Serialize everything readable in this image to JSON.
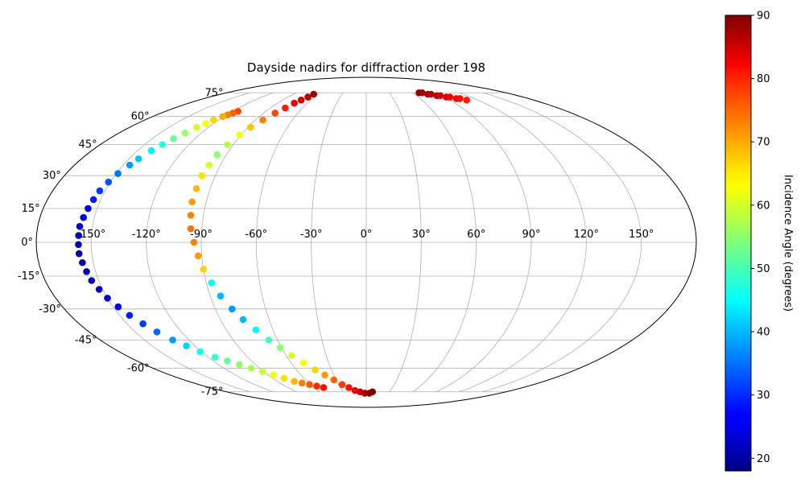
{
  "chart_data": {
    "type": "scatter",
    "projection": "mollweide",
    "title": "Dayside nadirs for diffraction order 198",
    "xlabel": "",
    "ylabel": "",
    "grid": true,
    "lon_ticks": [
      {
        "value": -150,
        "label": "-150°"
      },
      {
        "value": -120,
        "label": "-120°"
      },
      {
        "value": -90,
        "label": "-90°"
      },
      {
        "value": -60,
        "label": "-60°"
      },
      {
        "value": -30,
        "label": "-30°"
      },
      {
        "value": 0,
        "label": "0°"
      },
      {
        "value": 30,
        "label": "30°"
      },
      {
        "value": 60,
        "label": "60°"
      },
      {
        "value": 90,
        "label": "90°"
      },
      {
        "value": 120,
        "label": "120°"
      },
      {
        "value": 150,
        "label": "150°"
      }
    ],
    "lat_ticks": [
      {
        "value": 75,
        "label": "75°"
      },
      {
        "value": 60,
        "label": "60°"
      },
      {
        "value": 45,
        "label": "45°"
      },
      {
        "value": 30,
        "label": "30°"
      },
      {
        "value": 15,
        "label": "15°"
      },
      {
        "value": 0,
        "label": "0°"
      },
      {
        "value": -15,
        "label": "-15°"
      },
      {
        "value": -30,
        "label": "-30°"
      },
      {
        "value": -45,
        "label": "-45°"
      },
      {
        "value": -60,
        "label": "-60°"
      },
      {
        "value": -75,
        "label": "-75°"
      }
    ],
    "colorbar": {
      "label": "Incidence Angle (degrees)",
      "colormap": "jet",
      "range": [
        18,
        90
      ],
      "ticks": [
        {
          "value": 20,
          "label": "20"
        },
        {
          "value": 30,
          "label": "30"
        },
        {
          "value": 40,
          "label": "40"
        },
        {
          "value": 50,
          "label": "50"
        },
        {
          "value": 60,
          "label": "60"
        },
        {
          "value": 70,
          "label": "70"
        },
        {
          "value": 80,
          "label": "80"
        },
        {
          "value": 90,
          "label": "90"
        }
      ]
    },
    "series": [
      {
        "lon": [
          -115,
          -117,
          -119,
          -121,
          -124,
          -126,
          -129,
          -132,
          -135,
          -138,
          -141,
          -144,
          -146,
          -149,
          -151,
          -153,
          -154,
          -155,
          -156,
          -157,
          -157,
          -157,
          -157,
          -156,
          -155,
          -154,
          -152,
          -150,
          -147,
          -144,
          -140,
          -136,
          -131,
          -126,
          -121,
          -115,
          -109,
          -103,
          -97,
          -91,
          -85,
          -79,
          -73,
          -67,
          -61,
          -55,
          -49
        ],
        "lat": [
          63,
          62,
          61,
          60,
          58,
          56,
          54,
          51,
          48,
          45,
          42,
          38,
          35,
          31,
          27,
          23,
          19,
          15,
          11,
          7,
          3,
          -1,
          -5,
          -9,
          -13,
          -17,
          -21,
          -25,
          -29,
          -33,
          -37,
          -41,
          -45,
          -48,
          -51,
          -54,
          -56,
          -58,
          -60,
          -62,
          -64,
          -66,
          -68,
          -69,
          -70,
          -71,
          -72
        ],
        "value": [
          76,
          74,
          72,
          69,
          66,
          63,
          60,
          56,
          52,
          48,
          44,
          41,
          38,
          35,
          33,
          31,
          29,
          27,
          25,
          23,
          22,
          21,
          20,
          20,
          21,
          22,
          23,
          25,
          27,
          29,
          31,
          34,
          38,
          42,
          46,
          49,
          52,
          55,
          57,
          59,
          62,
          65,
          68,
          72,
          75,
          78,
          80
        ]
      },
      {
        "lon": [
          -65,
          -67,
          -70,
          -73,
          -76,
          -80,
          -84,
          -88,
          -91,
          -94,
          -96,
          -97,
          -98,
          -98,
          -98,
          -97,
          -96,
          -94,
          -92,
          -90,
          -87,
          -84,
          -80,
          -76,
          -71,
          -66,
          -61,
          -56,
          -50,
          -44,
          -38,
          -32,
          -26,
          -20,
          -14,
          -8,
          -2,
          4,
          8
        ],
        "lat": [
          74,
          72,
          70,
          68,
          65,
          62,
          58,
          54,
          50,
          45,
          40,
          35,
          30,
          24,
          18,
          12,
          6,
          0,
          -6,
          -12,
          -18,
          -24,
          -30,
          -35,
          -40,
          -45,
          -49,
          -53,
          -57,
          -61,
          -64,
          -67,
          -70,
          -72,
          -74,
          -75,
          -76,
          -76,
          -75
        ],
        "value": [
          88,
          86,
          84,
          82,
          79,
          76,
          72,
          67,
          62,
          58,
          55,
          60,
          65,
          68,
          70,
          72,
          73,
          72,
          70,
          66,
          45,
          40,
          38,
          40,
          45,
          50,
          55,
          60,
          63,
          66,
          70,
          74,
          77,
          80,
          82,
          85,
          87,
          89,
          90
        ]
      },
      {
        "lon": [
          68,
          72,
          76,
          80,
          84,
          88,
          92,
          96,
          100,
          104,
          108
        ],
        "lat": [
          75,
          75,
          74,
          74,
          73,
          73,
          72,
          72,
          71,
          71,
          70
        ],
        "value": [
          89,
          88,
          87,
          86,
          85,
          84,
          83,
          82,
          81,
          80,
          79
        ]
      }
    ]
  }
}
